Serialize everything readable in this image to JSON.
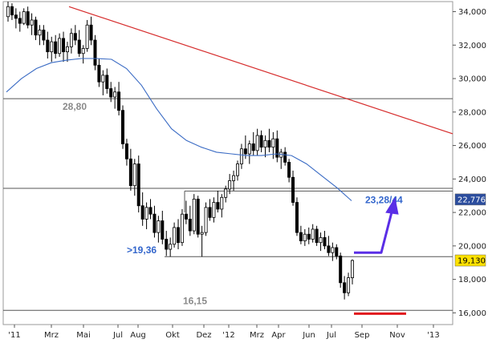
{
  "chart_data": {
    "type": "candlestick",
    "title": "",
    "xlabel": "",
    "ylabel": "",
    "ylim": [
      15.3,
      34.6
    ],
    "y_ticks": [
      "34,000",
      "32,000",
      "30,000",
      "28,000",
      "26,000",
      "24,000",
      "22,000",
      "20,000",
      "18,000",
      "16,000"
    ],
    "x_ticks": [
      "'11",
      "Mrz",
      "Mai",
      "Jul",
      "Aug",
      "Okt",
      "Dez",
      "'12",
      "Mrz",
      "Apr",
      "Jun",
      "Jul",
      "Sep",
      "Nov",
      "'13"
    ],
    "price_tags": [
      {
        "label": "22,776",
        "value": 22.776,
        "color": "#2b4d9e"
      },
      {
        "label": "19,130",
        "value": 19.13,
        "color": "#ffe100"
      }
    ],
    "horizontal_levels": [
      {
        "label": "28,80",
        "value": 28.8
      },
      {
        "label": "23,28/44",
        "value": 23.36
      },
      {
        "label": ">19,36",
        "value": 19.36
      },
      {
        "label": "16,15",
        "value": 16.15
      }
    ],
    "trend_line": {
      "color": "#d62b2b",
      "start": 34.3,
      "end": 26.7
    },
    "moving_average": {
      "color": "#3a6bc4",
      "values": [
        29.2,
        30.0,
        30.6,
        30.95,
        31.1,
        31.2,
        31.2,
        31.15,
        30.6,
        29.6,
        28.2,
        27.0,
        26.3,
        25.9,
        25.6,
        25.5,
        25.4,
        25.4,
        25.5,
        25.4,
        24.9,
        24.2,
        23.5,
        22.7
      ]
    },
    "ohlc": [
      [
        33.7,
        34.6,
        33.4,
        34.3
      ],
      [
        34.3,
        34.5,
        33.5,
        33.8
      ],
      [
        33.8,
        34.2,
        33.0,
        33.6
      ],
      [
        33.6,
        34.0,
        32.8,
        33.3
      ],
      [
        33.3,
        34.2,
        33.2,
        34.0
      ],
      [
        34.0,
        34.3,
        33.0,
        33.2
      ],
      [
        33.2,
        33.9,
        32.6,
        33.5
      ],
      [
        33.5,
        33.7,
        32.3,
        32.6
      ],
      [
        32.6,
        33.2,
        32.0,
        32.9
      ],
      [
        32.9,
        33.2,
        32.0,
        32.3
      ],
      [
        32.3,
        32.8,
        31.2,
        31.6
      ],
      [
        31.6,
        32.5,
        31.0,
        32.2
      ],
      [
        32.2,
        32.6,
        31.2,
        31.5
      ],
      [
        31.5,
        32.7,
        31.3,
        32.4
      ],
      [
        32.4,
        32.8,
        31.0,
        31.6
      ],
      [
        31.6,
        32.2,
        31.0,
        31.9
      ],
      [
        31.9,
        33.0,
        31.5,
        32.7
      ],
      [
        32.7,
        33.2,
        32.0,
        32.3
      ],
      [
        32.3,
        32.9,
        31.3,
        31.5
      ],
      [
        31.5,
        32.0,
        30.9,
        31.8
      ],
      [
        31.8,
        33.5,
        31.6,
        33.2
      ],
      [
        33.2,
        33.7,
        32.0,
        32.3
      ],
      [
        32.3,
        32.6,
        30.5,
        30.8
      ],
      [
        30.8,
        31.2,
        29.5,
        29.8
      ],
      [
        29.8,
        30.5,
        29.0,
        30.2
      ],
      [
        30.2,
        30.6,
        29.1,
        29.4
      ],
      [
        29.4,
        29.8,
        28.6,
        28.9
      ],
      [
        28.9,
        29.5,
        28.2,
        29.2
      ],
      [
        29.2,
        29.8,
        27.8,
        28.1
      ],
      [
        28.1,
        28.4,
        25.8,
        26.1
      ],
      [
        26.1,
        26.4,
        24.8,
        25.2
      ],
      [
        25.2,
        25.8,
        23.3,
        23.6
      ],
      [
        23.6,
        25.2,
        23.0,
        24.9
      ],
      [
        24.9,
        25.4,
        22.0,
        22.4
      ],
      [
        22.4,
        23.2,
        21.2,
        21.6
      ],
      [
        21.6,
        22.6,
        21.0,
        22.3
      ],
      [
        22.3,
        22.8,
        21.6,
        21.9
      ],
      [
        21.9,
        22.4,
        20.5,
        20.8
      ],
      [
        20.8,
        21.8,
        20.2,
        21.5
      ],
      [
        21.5,
        22.1,
        20.1,
        20.4
      ],
      [
        20.4,
        20.9,
        19.4,
        19.8
      ],
      [
        19.8,
        20.5,
        19.36,
        20.1
      ],
      [
        20.1,
        21.4,
        19.9,
        21.1
      ],
      [
        21.1,
        21.6,
        19.8,
        20.2
      ],
      [
        20.2,
        22.2,
        20.0,
        21.9
      ],
      [
        21.9,
        22.7,
        21.3,
        21.6
      ],
      [
        21.6,
        22.4,
        20.6,
        20.9
      ],
      [
        20.9,
        23.1,
        20.7,
        22.8
      ],
      [
        22.8,
        23.0,
        20.5,
        20.7
      ],
      [
        20.7,
        21.2,
        19.36,
        20.8
      ],
      [
        20.8,
        22.6,
        20.6,
        22.3
      ],
      [
        22.3,
        22.8,
        21.5,
        21.7
      ],
      [
        21.7,
        22.9,
        21.4,
        22.6
      ],
      [
        22.6,
        23.3,
        22.0,
        22.2
      ],
      [
        22.2,
        23.1,
        21.7,
        22.9
      ],
      [
        22.9,
        23.6,
        22.6,
        23.4
      ],
      [
        23.4,
        24.3,
        23.1,
        23.9
      ],
      [
        23.9,
        24.5,
        23.3,
        24.2
      ],
      [
        24.2,
        25.1,
        23.9,
        24.9
      ],
      [
        24.9,
        26.1,
        24.6,
        25.8
      ],
      [
        25.8,
        26.6,
        25.2,
        25.5
      ],
      [
        25.5,
        26.3,
        24.9,
        26.1
      ],
      [
        26.1,
        26.8,
        25.4,
        25.7
      ],
      [
        25.7,
        27.0,
        25.4,
        26.6
      ],
      [
        26.6,
        26.9,
        25.6,
        25.9
      ],
      [
        25.9,
        26.6,
        25.3,
        26.3
      ],
      [
        26.3,
        27.0,
        25.6,
        25.9
      ],
      [
        25.9,
        26.8,
        25.2,
        26.4
      ],
      [
        26.4,
        26.9,
        25.0,
        25.3
      ],
      [
        25.3,
        25.8,
        24.6,
        25.6
      ],
      [
        25.6,
        25.9,
        24.8,
        25.0
      ],
      [
        25.0,
        25.2,
        23.8,
        24.1
      ],
      [
        24.1,
        24.5,
        22.4,
        22.6
      ],
      [
        22.6,
        22.9,
        20.6,
        20.8
      ],
      [
        20.8,
        21.2,
        20.1,
        20.3
      ],
      [
        20.3,
        21.0,
        20.0,
        20.7
      ],
      [
        20.7,
        21.1,
        20.1,
        20.4
      ],
      [
        20.4,
        21.3,
        20.2,
        21.0
      ],
      [
        21.0,
        21.2,
        20.0,
        20.2
      ],
      [
        20.2,
        20.8,
        19.7,
        20.5
      ],
      [
        20.5,
        20.9,
        19.8,
        20.0
      ],
      [
        20.0,
        20.6,
        19.4,
        19.6
      ],
      [
        19.6,
        20.2,
        19.1,
        19.9
      ],
      [
        19.9,
        20.1,
        19.2,
        19.4
      ],
      [
        19.4,
        19.6,
        17.5,
        17.8
      ],
      [
        17.8,
        18.2,
        16.8,
        17.2
      ],
      [
        17.2,
        18.4,
        17.0,
        18.1
      ],
      [
        18.1,
        19.2,
        17.7,
        19.13
      ]
    ],
    "annotations": {
      "red_bar": {
        "color": "#e0191d",
        "value": 15.95
      },
      "blue_arrow": {
        "color": "#5a2ee6",
        "from": 19.6,
        "to": 22.7
      }
    }
  }
}
